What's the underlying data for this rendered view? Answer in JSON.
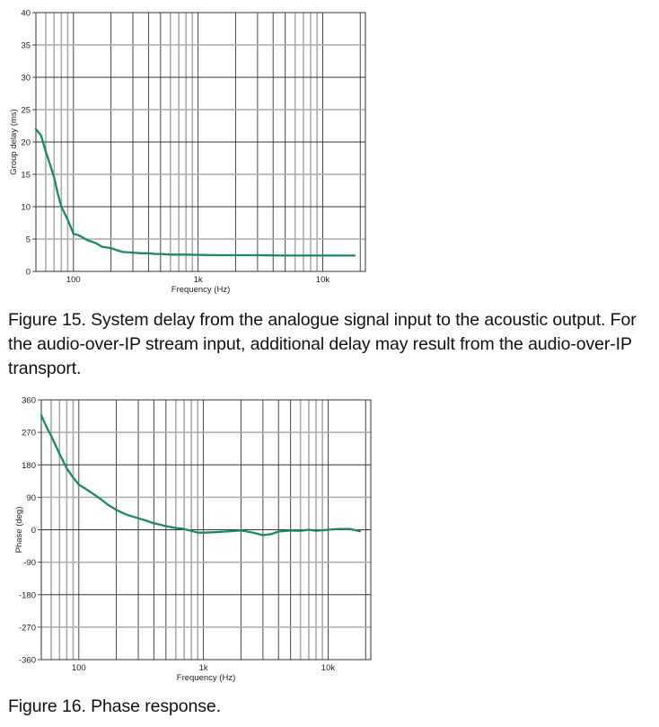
{
  "figures": [
    {
      "caption": "Figure 15. System delay from the analogue signal input to the acoustic output. For the audio-over-IP stream input, additional delay may result from the audio-over-IP transport."
    },
    {
      "caption": "Figure 16. Phase response."
    }
  ],
  "colors": {
    "curve": "#1a8a5a",
    "grid_major": "#333333",
    "grid_minor": "#aaaaaa"
  },
  "chart_data": [
    {
      "type": "line",
      "title": "",
      "xlabel": "Frequency (Hz)",
      "ylabel": "Group delay (ms)",
      "xscale": "log",
      "xlim": [
        50,
        22000
      ],
      "ylim": [
        0,
        40
      ],
      "xticks": [
        {
          "v": 100,
          "label": "100"
        },
        {
          "v": 1000,
          "label": "1k"
        },
        {
          "v": 10000,
          "label": "10k"
        }
      ],
      "yticks": [
        0,
        5,
        10,
        15,
        20,
        25,
        30,
        35,
        40
      ],
      "grid": true,
      "series": [
        {
          "name": "Group delay",
          "x": [
            50,
            55,
            60,
            65,
            70,
            75,
            80,
            90,
            100,
            110,
            120,
            130,
            150,
            170,
            200,
            230,
            250,
            300,
            350,
            400,
            450,
            500,
            600,
            700,
            800,
            1000,
            1500,
            2000,
            3000,
            5000,
            7000,
            10000,
            14000,
            18000
          ],
          "values": [
            22,
            21,
            18.5,
            16.5,
            14.5,
            12,
            10,
            8,
            5.8,
            5.6,
            5.2,
            4.8,
            4.4,
            3.8,
            3.6,
            3.2,
            3.0,
            2.9,
            2.8,
            2.8,
            2.7,
            2.7,
            2.6,
            2.6,
            2.6,
            2.55,
            2.5,
            2.5,
            2.5,
            2.45,
            2.45,
            2.45,
            2.45,
            2.45
          ]
        }
      ]
    },
    {
      "type": "line",
      "title": "",
      "xlabel": "Frequency (Hz)",
      "ylabel": "Phase (deg)",
      "xscale": "log",
      "xlim": [
        50,
        22000
      ],
      "ylim": [
        -360,
        360
      ],
      "xticks": [
        {
          "v": 100,
          "label": "100"
        },
        {
          "v": 1000,
          "label": "1k"
        },
        {
          "v": 10000,
          "label": "10k"
        }
      ],
      "yticks": [
        -360,
        -270,
        -180,
        -90,
        0,
        90,
        180,
        270,
        360
      ],
      "grid": true,
      "series": [
        {
          "name": "Phase",
          "x": [
            50,
            55,
            60,
            65,
            70,
            75,
            80,
            90,
            100,
            115,
            130,
            150,
            170,
            200,
            230,
            250,
            300,
            350,
            400,
            450,
            500,
            600,
            700,
            800,
            900,
            1000,
            1200,
            1500,
            2000,
            2500,
            3000,
            3500,
            4000,
            5000,
            6000,
            7000,
            8000,
            10000,
            12000,
            15000,
            18000
          ],
          "values": [
            318,
            285,
            260,
            235,
            210,
            190,
            170,
            145,
            125,
            112,
            100,
            85,
            70,
            55,
            45,
            40,
            32,
            25,
            18,
            14,
            10,
            5,
            2,
            -3,
            -8,
            -8,
            -7,
            -5,
            -2,
            -8,
            -15,
            -12,
            -5,
            -2,
            -3,
            0,
            -3,
            0,
            2,
            2,
            -4
          ]
        }
      ]
    }
  ]
}
